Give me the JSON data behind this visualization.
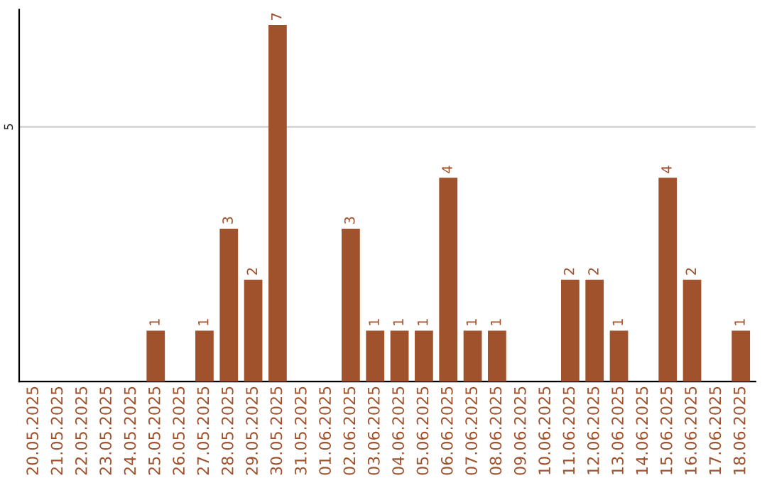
{
  "chart_data": {
    "type": "bar",
    "categories": [
      "20.05.2025",
      "21.05.2025",
      "22.05.2025",
      "23.05.2025",
      "24.05.2025",
      "25.05.2025",
      "26.05.2025",
      "27.05.2025",
      "28.05.2025",
      "29.05.2025",
      "30.05.2025",
      "31.05.2025",
      "01.06.2025",
      "02.06.2025",
      "03.06.2025",
      "04.06.2025",
      "05.06.2025",
      "06.06.2025",
      "07.06.2025",
      "08.06.2025",
      "09.06.2025",
      "10.06.2025",
      "11.06.2025",
      "12.06.2025",
      "13.06.2025",
      "14.06.2025",
      "15.06.2025",
      "16.06.2025",
      "17.06.2025",
      "18.06.2025"
    ],
    "values": [
      0,
      0,
      0,
      0,
      0,
      1,
      0,
      1,
      3,
      2,
      7,
      0,
      0,
      3,
      1,
      1,
      1,
      4,
      1,
      1,
      0,
      0,
      2,
      2,
      1,
      0,
      4,
      2,
      0,
      1
    ],
    "value_labels": [
      null,
      null,
      null,
      null,
      null,
      "1",
      null,
      "1",
      "3",
      "2",
      "7",
      null,
      null,
      "3",
      "1",
      "1",
      "1",
      "4",
      "1",
      "1",
      null,
      null,
      "2",
      "2",
      "1",
      null,
      "4",
      "2",
      null,
      "1"
    ],
    "color": "#a0522d",
    "ylim": [
      0,
      7.3
    ],
    "yticks": [
      5
    ],
    "grid": "y"
  }
}
